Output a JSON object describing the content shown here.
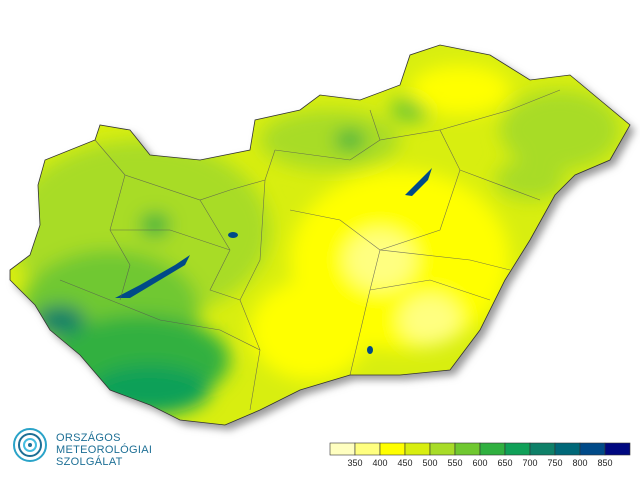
{
  "logo": {
    "lines": [
      "ORSZÁGOS",
      "METEOROLÓGIAI",
      "SZOLGÁLAT"
    ]
  },
  "legend": {
    "colors": [
      "#ffffc0",
      "#ffff80",
      "#ffff00",
      "#d8ee10",
      "#a8dc28",
      "#70c830",
      "#30b040",
      "#10a058",
      "#0e8068",
      "#006878",
      "#004a88",
      "#000880"
    ],
    "ticks": [
      350,
      400,
      450,
      500,
      550,
      600,
      650,
      700,
      750,
      800,
      850
    ]
  }
}
